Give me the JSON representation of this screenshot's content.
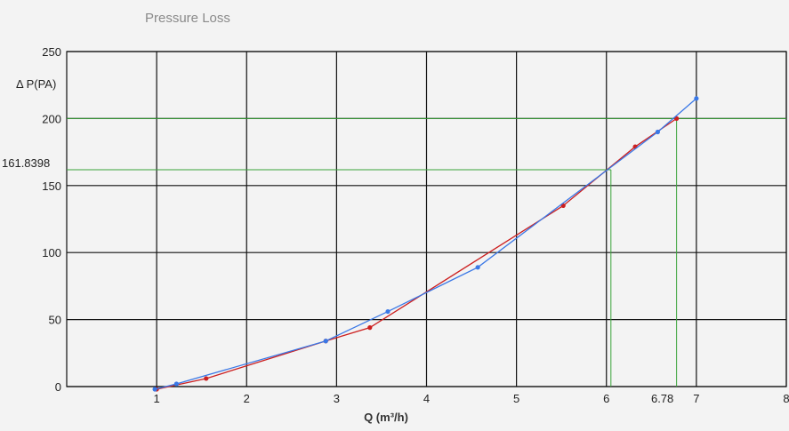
{
  "chart_data": {
    "type": "line",
    "title": "Pressure Loss",
    "xlabel": "Q (m³/h)",
    "ylabel": "Δ P(PA)",
    "xlim": [
      0,
      8
    ],
    "ylim": [
      0,
      250
    ],
    "xticks": [
      1,
      2,
      3,
      4,
      5,
      6,
      7,
      8
    ],
    "yticks": [
      0,
      50,
      100,
      150,
      200,
      250
    ],
    "grid": true,
    "series": [
      {
        "color": "#cc1f1f",
        "x": [
          1.0,
          1.55,
          2.88,
          3.37,
          5.52,
          6.32,
          6.78
        ],
        "y": [
          -2,
          6,
          34,
          44,
          135,
          179,
          200
        ]
      },
      {
        "color": "#3a78e6",
        "x": [
          0.98,
          1.22,
          2.88,
          3.57,
          4.57,
          6.57,
          7.0
        ],
        "y": [
          -2,
          2,
          34,
          56,
          89,
          190,
          215
        ]
      }
    ],
    "reference_lines": {
      "color": "#3aa33a",
      "lines": [
        {
          "y": 200,
          "x": 6.78,
          "y_label": "",
          "x_label": "6.78"
        },
        {
          "y": 161.8398,
          "x": 6.05,
          "y_label": "161.8398",
          "x_label": ""
        }
      ]
    }
  }
}
